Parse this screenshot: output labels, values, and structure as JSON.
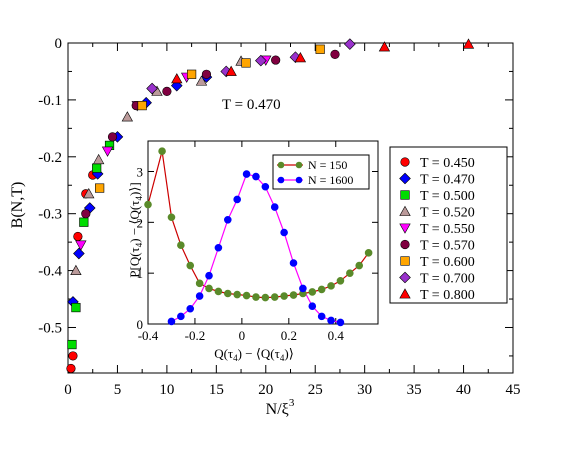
{
  "chart_data": [
    {
      "type": "scatter",
      "xlabel": "N/ξ",
      "xlabel_sup": "3",
      "ylabel": "B(N,T)",
      "xlim": [
        0,
        45
      ],
      "ylim": [
        -0.58,
        0
      ],
      "x_ticks": [
        "0",
        "5",
        "10",
        "15",
        "20",
        "25",
        "30",
        "35",
        "40",
        "45"
      ],
      "y_ticks": [
        "0",
        "-0.1",
        "-0.2",
        "-0.3",
        "-0.4",
        "-0.5"
      ],
      "grid": false,
      "legend_position": "right",
      "annotation": "T = 0.470",
      "series": [
        {
          "name": "T = 0.450",
          "marker": "circle",
          "color": "#ff0000",
          "points": [
            [
              0.3,
              -0.572
            ],
            [
              0.5,
              -0.55
            ],
            [
              1.0,
              -0.34
            ],
            [
              1.8,
              -0.265
            ],
            [
              2.5,
              -0.232
            ]
          ]
        },
        {
          "name": "T = 0.470",
          "marker": "diamond",
          "color": "#0000ff",
          "points": [
            [
              0.5,
              -0.455
            ],
            [
              1.1,
              -0.37
            ],
            [
              2.2,
              -0.29
            ],
            [
              3.0,
              -0.23
            ],
            [
              5.0,
              -0.165
            ],
            [
              7.9,
              -0.105
            ],
            [
              11.0,
              -0.075
            ],
            [
              14.0,
              -0.06
            ]
          ]
        },
        {
          "name": "T = 0.500",
          "marker": "square",
          "color": "#00dd00",
          "points": [
            [
              0.4,
              -0.53
            ],
            [
              0.8,
              -0.465
            ],
            [
              1.6,
              -0.315
            ],
            [
              2.9,
              -0.22
            ],
            [
              4.2,
              -0.18
            ]
          ]
        },
        {
          "name": "T = 0.520",
          "marker": "triangle-up",
          "color": "#bb9a9a",
          "points": [
            [
              0.8,
              -0.4
            ],
            [
              2.1,
              -0.265
            ],
            [
              3.1,
              -0.205
            ],
            [
              6.0,
              -0.13
            ],
            [
              9.0,
              -0.085
            ],
            [
              13.5,
              -0.067
            ],
            [
              17.5,
              -0.032
            ]
          ]
        },
        {
          "name": "T = 0.550",
          "marker": "triangle-down",
          "color": "#ff00ff",
          "points": [
            [
              1.3,
              -0.355
            ],
            [
              4.0,
              -0.19
            ],
            [
              7.0,
              -0.11
            ],
            [
              12.0,
              -0.06
            ],
            [
              20.0,
              -0.03
            ]
          ]
        },
        {
          "name": "T = 0.570",
          "marker": "circle",
          "color": "#800040",
          "points": [
            [
              1.8,
              -0.3
            ],
            [
              4.5,
              -0.165
            ],
            [
              6.9,
              -0.11
            ],
            [
              10.0,
              -0.085
            ],
            [
              14.0,
              -0.055
            ],
            [
              21.0,
              -0.03
            ],
            [
              27.0,
              -0.02
            ]
          ]
        },
        {
          "name": "T = 0.600",
          "marker": "square",
          "color": "#ffa500",
          "points": [
            [
              3.2,
              -0.255
            ],
            [
              7.5,
              -0.11
            ],
            [
              12.5,
              -0.055
            ],
            [
              18.0,
              -0.035
            ],
            [
              25.5,
              -0.011
            ]
          ]
        },
        {
          "name": "T = 0.700",
          "marker": "diamond",
          "color": "#9932cc",
          "points": [
            [
              8.5,
              -0.08
            ],
            [
              16.0,
              -0.05
            ],
            [
              19.5,
              -0.031
            ],
            [
              23.0,
              -0.025
            ],
            [
              28.5,
              -0.002
            ]
          ]
        },
        {
          "name": "T = 0.800",
          "marker": "triangle-up",
          "color": "#ff0000",
          "points": [
            [
              11.0,
              -0.063
            ],
            [
              16.5,
              -0.05
            ],
            [
              23.5,
              -0.026
            ],
            [
              32.0,
              -0.007
            ],
            [
              40.5,
              -0.002
            ]
          ]
        }
      ]
    },
    {
      "type": "line",
      "xlabel": "Q(τ4) − ⟨Q(τ4)⟩",
      "ylabel": "P[Q(τ4) − ⟨Q(τ4)⟩]",
      "xlim": [
        -0.4,
        0.58
      ],
      "ylim": [
        0,
        3.6
      ],
      "x_ticks": [
        "-0.4",
        "-0.2",
        "0",
        "0.2",
        "0.4"
      ],
      "y_ticks": [
        "0",
        "1",
        "2",
        "3"
      ],
      "legend_position": "top-right",
      "series": [
        {
          "name": "N = 150",
          "color": "#cc0000",
          "marker_fill": "#5a8a2a",
          "x": [
            -0.4,
            -0.34,
            -0.3,
            -0.26,
            -0.22,
            -0.18,
            -0.14,
            -0.1,
            -0.06,
            -0.02,
            0.02,
            0.06,
            0.1,
            0.14,
            0.18,
            0.22,
            0.26,
            0.3,
            0.34,
            0.38,
            0.42,
            0.46,
            0.5,
            0.54
          ],
          "y": [
            2.35,
            3.4,
            2.1,
            1.55,
            1.15,
            0.8,
            0.7,
            0.64,
            0.6,
            0.58,
            0.56,
            0.53,
            0.52,
            0.53,
            0.55,
            0.57,
            0.6,
            0.63,
            0.68,
            0.75,
            0.85,
            1.0,
            1.15,
            1.4
          ]
        },
        {
          "name": "N = 1600",
          "color": "#ff00ff",
          "marker_fill": "#0000ff",
          "x": [
            -0.3,
            -0.26,
            -0.22,
            -0.18,
            -0.14,
            -0.1,
            -0.06,
            -0.02,
            0.02,
            0.06,
            0.1,
            0.14,
            0.18,
            0.22,
            0.26,
            0.3,
            0.34,
            0.38,
            0.42
          ],
          "y": [
            0.05,
            0.15,
            0.3,
            0.55,
            0.95,
            1.5,
            2.05,
            2.45,
            2.95,
            2.9,
            2.7,
            2.3,
            1.8,
            1.2,
            0.7,
            0.35,
            0.15,
            0.07,
            0.03
          ]
        }
      ]
    }
  ]
}
